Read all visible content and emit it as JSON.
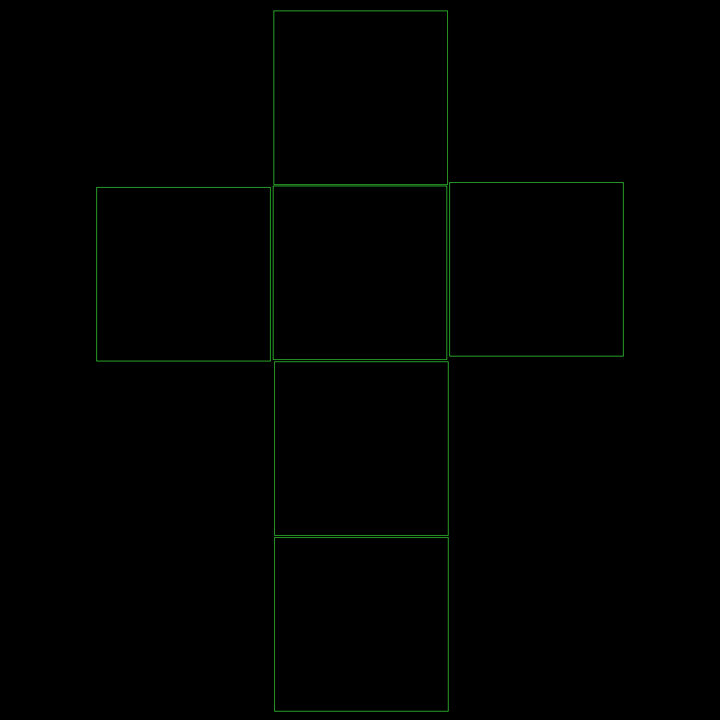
{
  "diagram": {
    "type": "cube-net",
    "background_color": "#000000",
    "stroke_color": "#33cc33",
    "faces": [
      {
        "id": "top"
      },
      {
        "id": "left"
      },
      {
        "id": "center"
      },
      {
        "id": "right"
      },
      {
        "id": "lower"
      },
      {
        "id": "bottom"
      }
    ]
  }
}
